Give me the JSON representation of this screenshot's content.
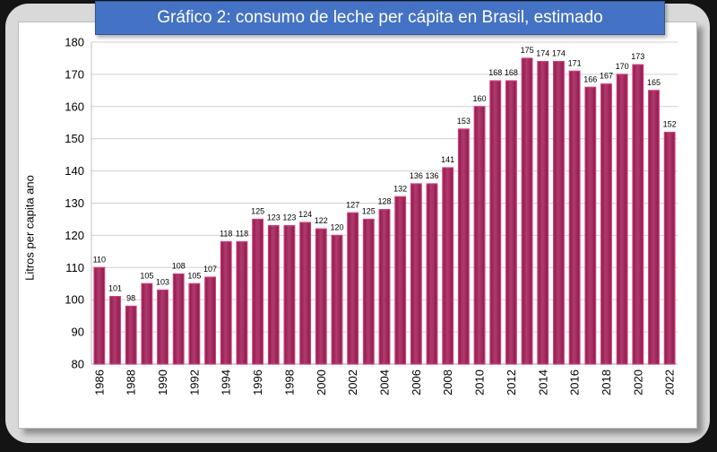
{
  "chart_data": {
    "type": "bar",
    "title": "Gráfico 2: consumo de leche per cápita en Brasil, estimado",
    "xlabel": "",
    "ylabel": "Litros per capita ano",
    "ylim": [
      80,
      180
    ],
    "yticks": [
      80,
      90,
      100,
      110,
      120,
      130,
      140,
      150,
      160,
      170,
      180
    ],
    "grid": true,
    "bar_color": "#8b1a4a",
    "bar_highlight": "#b23a6d",
    "categories": [
      "1986",
      "1987",
      "1988",
      "1989",
      "1990",
      "1991",
      "1992",
      "1993",
      "1994",
      "1995",
      "1996",
      "1997",
      "1998",
      "1999",
      "2000",
      "2001",
      "2002",
      "2003",
      "2004",
      "2005",
      "2006",
      "2007",
      "2008",
      "2009",
      "2010",
      "2011",
      "2012",
      "2013",
      "2014",
      "2015",
      "2016",
      "2017",
      "2018",
      "2019",
      "2020",
      "2021",
      "2022"
    ],
    "tick_labels": [
      "1986",
      "",
      "1988",
      "",
      "1990",
      "",
      "1992",
      "",
      "1994",
      "",
      "1996",
      "",
      "1998",
      "",
      "2000",
      "",
      "2002",
      "",
      "2004",
      "",
      "2006",
      "",
      "2008",
      "",
      "2010",
      "",
      "2012",
      "",
      "2014",
      "",
      "2016",
      "",
      "2018",
      "",
      "2020",
      "",
      "2022"
    ],
    "values": [
      110,
      101,
      98,
      105,
      103,
      108,
      105,
      107,
      118,
      118,
      125,
      123,
      123,
      124,
      122,
      120,
      127,
      125,
      128,
      132,
      136,
      136,
      141,
      153,
      160,
      168,
      168,
      175,
      174,
      174,
      171,
      166,
      167,
      170,
      173,
      165,
      152
    ]
  }
}
